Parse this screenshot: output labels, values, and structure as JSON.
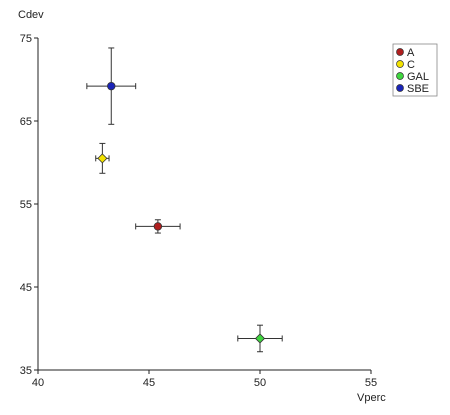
{
  "chart_data": {
    "type": "scatter",
    "title": "",
    "xlabel": "Vperc",
    "ylabel": "Cdev",
    "xlim": [
      40,
      55
    ],
    "ylim": [
      35,
      75
    ],
    "xticks": [
      40,
      45,
      50,
      55
    ],
    "yticks": [
      35,
      45,
      55,
      65,
      75
    ],
    "grid": false,
    "legend_position": "top-right",
    "error_bars": true,
    "series": [
      {
        "name": "A",
        "color": "#b01e1e",
        "marker": "circle",
        "x": 45.4,
        "y": 52.3,
        "xerr": 1.0,
        "yerr": 0.8
      },
      {
        "name": "C",
        "color": "#f2e200",
        "marker": "diamond",
        "x": 42.9,
        "y": 60.5,
        "xerr": 0.3,
        "yerr": 1.8
      },
      {
        "name": "GAL",
        "color": "#3fd63f",
        "marker": "diamond",
        "x": 50.0,
        "y": 38.8,
        "xerr": 1.0,
        "yerr": 1.6
      },
      {
        "name": "SBE",
        "color": "#1a24b8",
        "marker": "circle",
        "x": 43.3,
        "y": 69.2,
        "xerr": 1.1,
        "yerr": 4.6
      }
    ]
  }
}
